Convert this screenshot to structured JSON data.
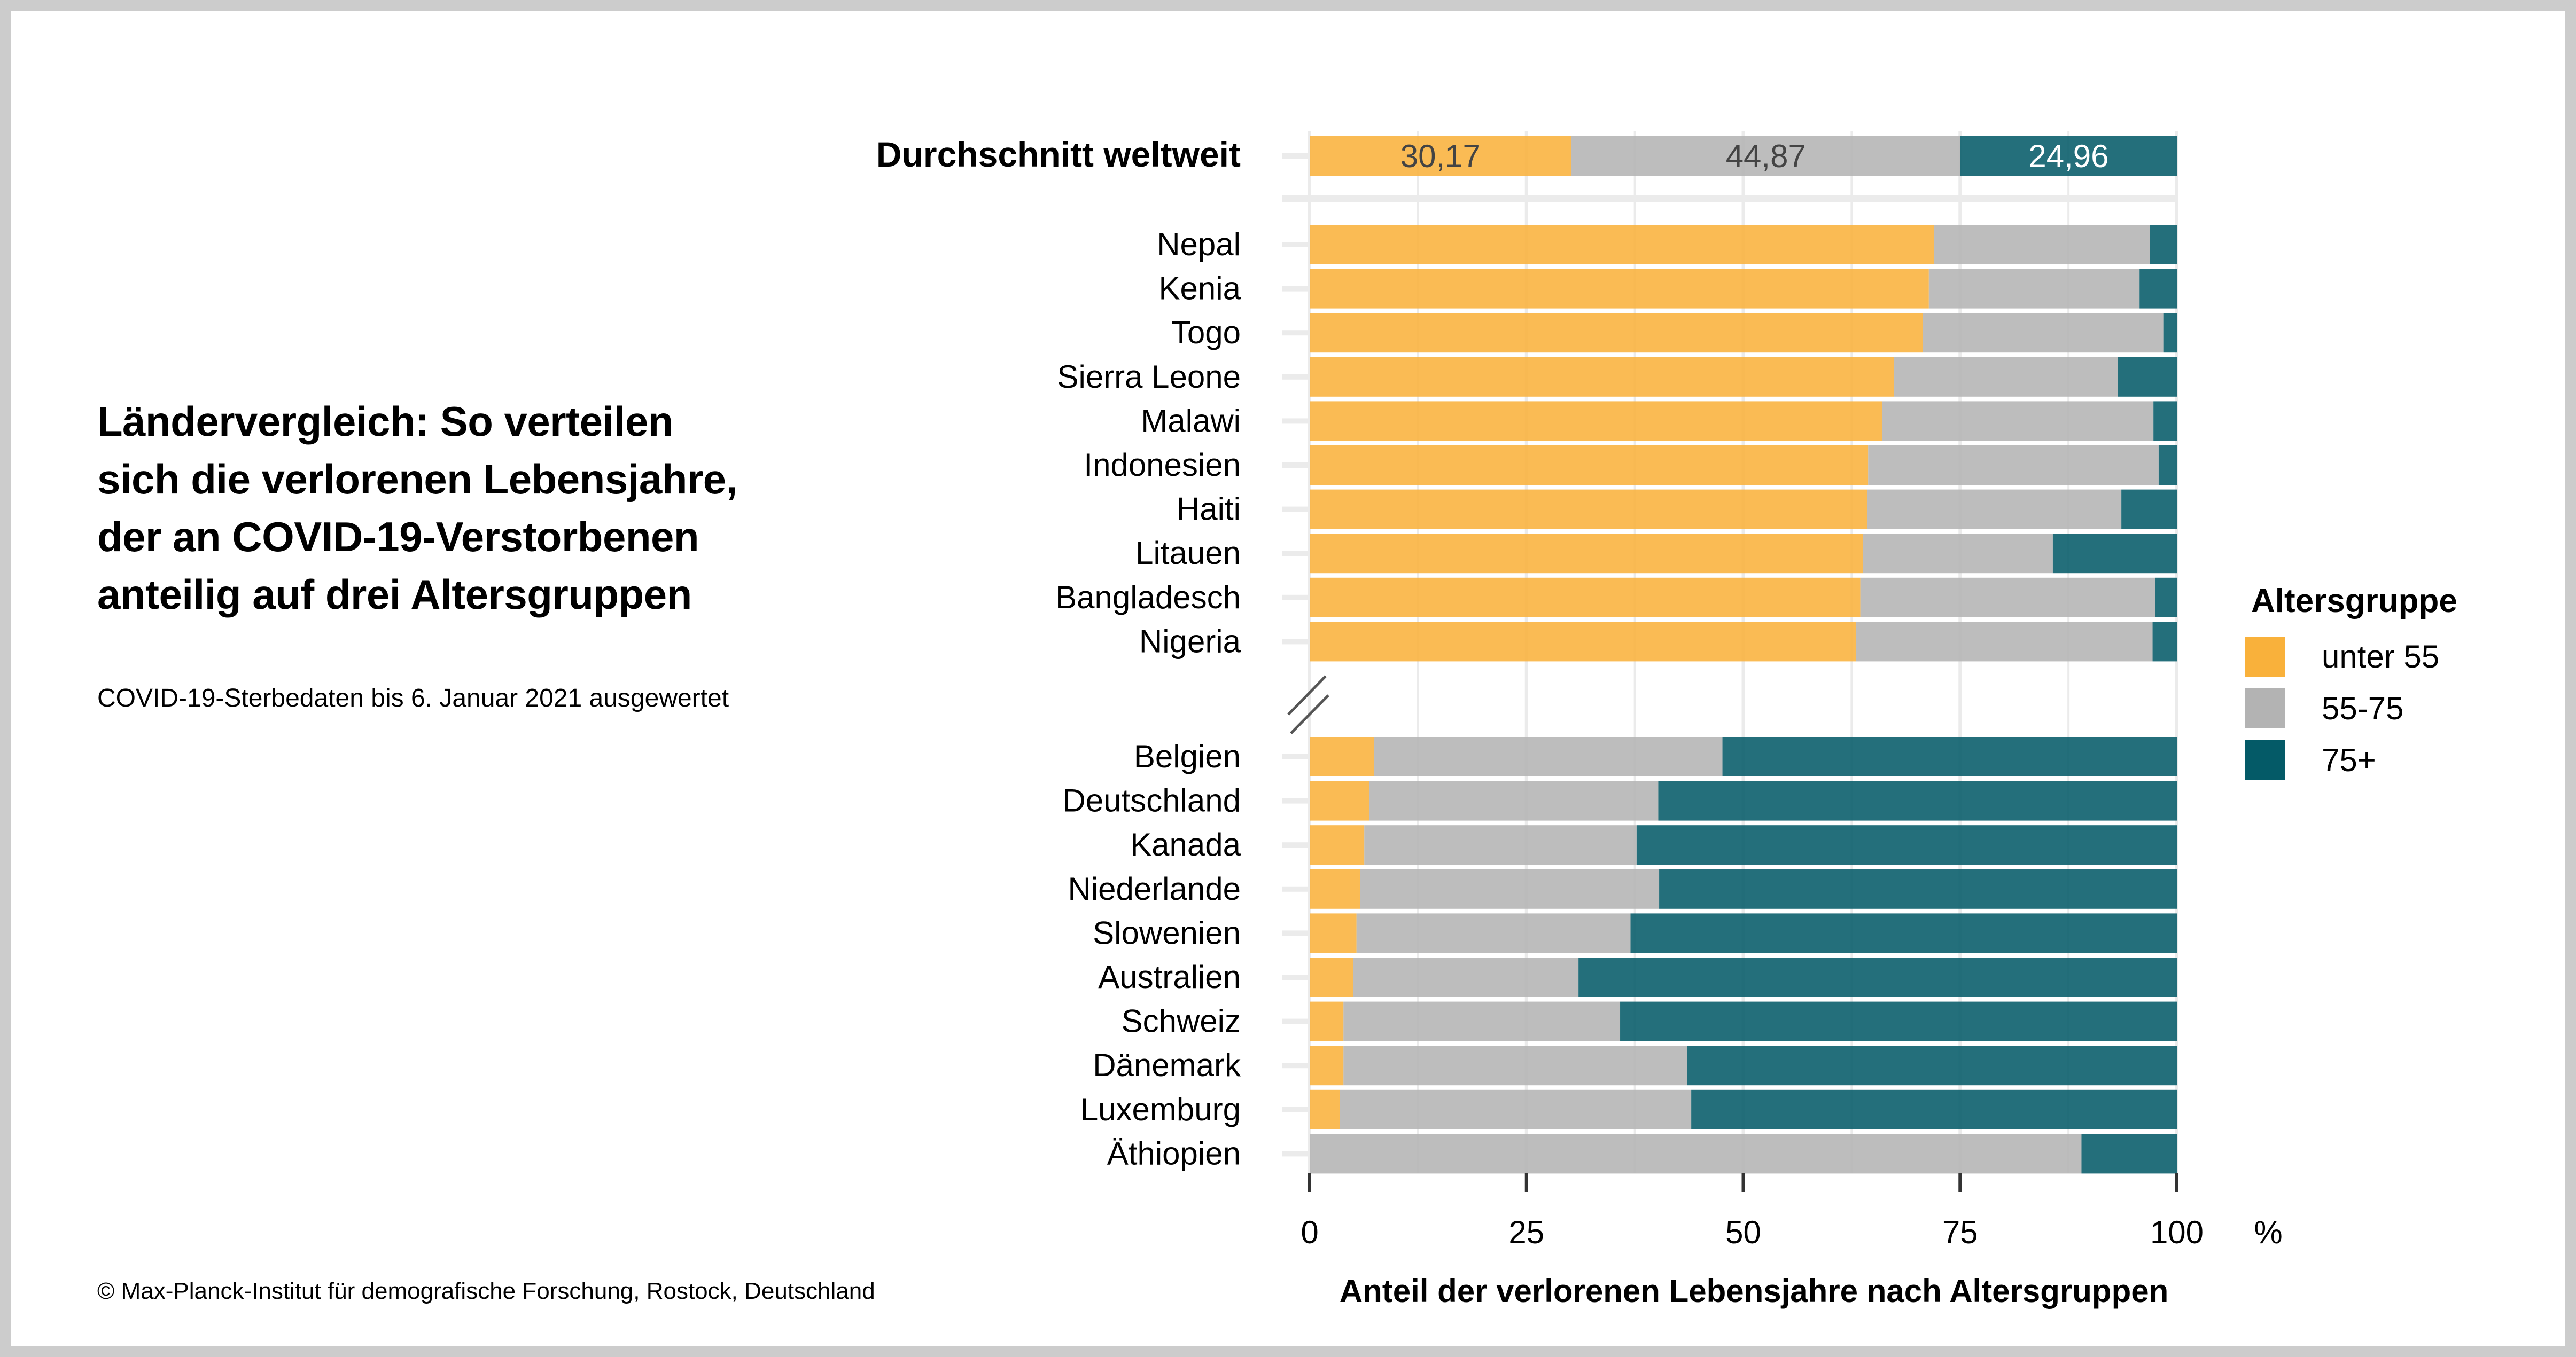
{
  "page": {
    "title_lines": [
      "Ländervergleich: So verteilen",
      "sich die verlorenen Lebensjahre,",
      "der an COVID-19-Verstorbenen",
      "anteilig auf drei Altersgruppen"
    ],
    "subtitle": "COVID-19-Sterbedaten bis 6. Januar 2021 ausgewertet",
    "footer": "© Max-Planck-Institut für demografische Forschung, Rostock, Deutschland"
  },
  "colors": {
    "unter55": "#F9B13B",
    "55-75": "#B3B3B3",
    "75plus": "#045A67",
    "grid": "#EBEBEB",
    "border": "#CCCCCC"
  },
  "chart_data": {
    "type": "bar",
    "orientation": "horizontal",
    "stacked": true,
    "title": "Ländervergleich: So verteilen sich die verlorenen Lebensjahre, der an COVID-19-Verstorbenen anteilig auf drei Altersgruppen",
    "xlabel": "Anteil der verlorenen Lebensjahre nach Altersgruppen",
    "xunit": "%",
    "ylabel": "",
    "xlim": [
      0,
      100
    ],
    "xticks": [
      "0",
      "25",
      "50",
      "75",
      "100"
    ],
    "grid": true,
    "legend": {
      "title": "Altersgruppe",
      "position": "right",
      "entries": [
        "unter 55",
        "55-75",
        "75+"
      ]
    },
    "average": {
      "label": "Durchschnitt weltweit",
      "values": [
        30.17,
        44.87,
        24.96
      ],
      "value_labels": [
        "30,17",
        "44,87",
        "24,96"
      ]
    },
    "axis_break": "between Nigeria and Belgien",
    "categories_top": [
      "Nepal",
      "Kenia",
      "Togo",
      "Sierra Leone",
      "Malawi",
      "Indonesien",
      "Haiti",
      "Litauen",
      "Bangladesch",
      "Nigeria"
    ],
    "categories_bottom": [
      "Belgien",
      "Deutschland",
      "Kanada",
      "Niederlande",
      "Slowenien",
      "Australien",
      "Schweiz",
      "Dänemark",
      "Luxemburg",
      "Äthiopien"
    ],
    "series": [
      {
        "name": "unter 55",
        "top": [
          72.0,
          71.4,
          70.7,
          67.4,
          66.0,
          64.4,
          64.3,
          63.8,
          63.5,
          63.0
        ],
        "bottom": [
          7.4,
          6.9,
          6.3,
          5.8,
          5.4,
          5.0,
          3.9,
          3.9,
          3.5,
          0.0
        ]
      },
      {
        "name": "55-75",
        "top": [
          24.9,
          24.3,
          27.8,
          25.8,
          31.3,
          33.5,
          29.3,
          21.9,
          34.0,
          34.2
        ],
        "bottom": [
          40.2,
          33.3,
          31.4,
          34.5,
          31.6,
          26.0,
          31.9,
          39.6,
          40.5,
          89.0
        ]
      },
      {
        "name": "75+",
        "top": [
          3.1,
          4.3,
          1.5,
          6.8,
          2.7,
          2.1,
          6.4,
          14.3,
          2.5,
          2.8
        ],
        "bottom": [
          52.4,
          59.8,
          62.3,
          59.7,
          63.0,
          69.0,
          64.2,
          56.5,
          56.0,
          11.0
        ]
      }
    ]
  }
}
